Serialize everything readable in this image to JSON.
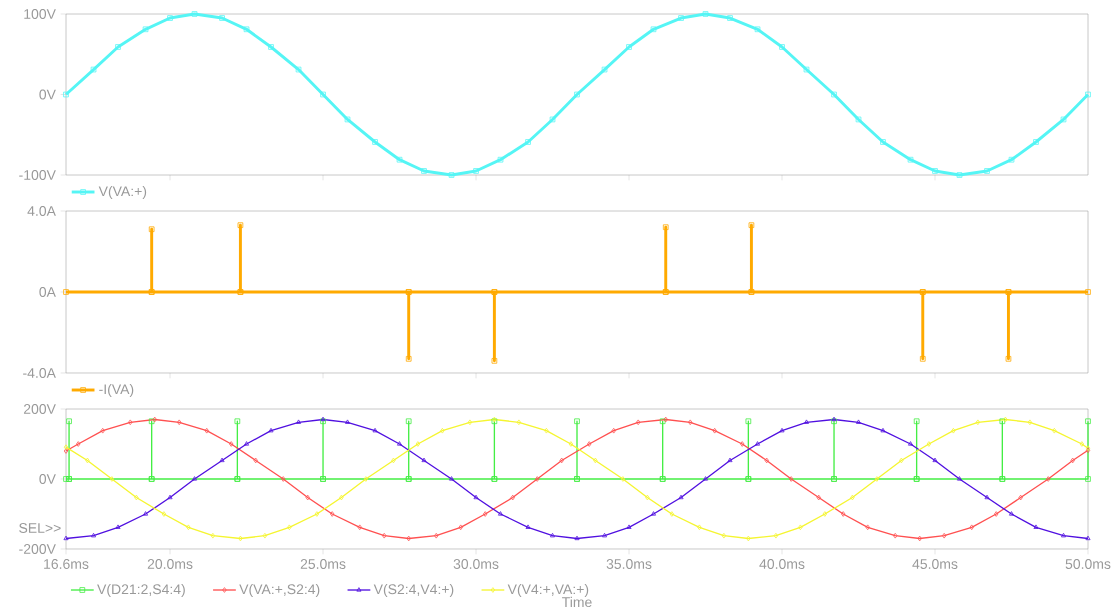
{
  "chart_data": [
    {
      "type": "line",
      "xlim": [
        16.6,
        50.0
      ],
      "xticks": [
        20,
        25,
        30,
        35,
        40,
        45
      ],
      "ylim": [
        -100,
        100
      ],
      "yticks": [
        {
          "value": -100,
          "label": "-100V"
        },
        {
          "value": 0,
          "label": "0V"
        },
        {
          "value": 100,
          "label": "100V"
        }
      ],
      "tick_labels": "y",
      "legend": "bottom left",
      "grid": false,
      "series": [
        {
          "name": "V(VA:+)",
          "color": "#55f5f5",
          "marker": "square",
          "x": [
            16.6,
            17.5,
            18.3,
            19.2,
            20.0,
            20.8,
            21.7,
            22.5,
            23.3,
            24.2,
            25.0,
            25.8,
            26.7,
            27.5,
            28.3,
            29.2,
            30.0,
            30.8,
            31.7,
            32.5,
            33.3,
            34.2,
            35.0,
            35.8,
            36.7,
            37.5,
            38.3,
            39.2,
            40.0,
            40.8,
            41.7,
            42.5,
            43.3,
            44.2,
            45.0,
            45.8,
            46.7,
            47.5,
            48.3,
            49.2,
            50.0
          ],
          "values": [
            0,
            31,
            59,
            81,
            95,
            100,
            95,
            81,
            59,
            31,
            0,
            -31,
            -59,
            -81,
            -95,
            -100,
            -95,
            -81,
            -59,
            -31,
            0,
            31,
            59,
            81,
            95,
            100,
            95,
            81,
            59,
            31,
            0,
            -31,
            -59,
            -81,
            -95,
            -100,
            -95,
            -81,
            -59,
            -31,
            0
          ]
        }
      ]
    },
    {
      "type": "line",
      "xlim": [
        16.6,
        50.0
      ],
      "xticks": [
        20,
        25,
        30,
        35,
        40,
        45
      ],
      "ylim": [
        -4,
        4
      ],
      "yticks": [
        {
          "value": -4,
          "label": "-4.0A"
        },
        {
          "value": 0,
          "label": "0A"
        },
        {
          "value": 4,
          "label": "4.0A"
        }
      ],
      "tick_labels": "y",
      "legend": "bottom left",
      "grid": false,
      "series": [
        {
          "name": "-I(VA)",
          "color": "#ffaa00",
          "marker": "square",
          "x": [
            16.6,
            19.4,
            19.4,
            19.4,
            22.3,
            22.3,
            22.3,
            27.8,
            27.8,
            27.8,
            30.6,
            30.6,
            30.6,
            36.2,
            36.2,
            36.2,
            39.0,
            39.0,
            39.0,
            44.6,
            44.6,
            44.6,
            47.4,
            47.4,
            47.4,
            50.0
          ],
          "values": [
            0,
            0,
            3.1,
            0,
            0,
            3.3,
            0,
            0,
            -3.3,
            0,
            0,
            -3.4,
            0,
            0,
            3.2,
            0,
            0,
            3.3,
            0,
            0,
            -3.3,
            0,
            0,
            -3.3,
            0,
            0
          ]
        }
      ]
    },
    {
      "type": "line",
      "xlim": [
        16.6,
        50.0
      ],
      "xticks": [
        {
          "value": 16.6,
          "label": "16.6ms"
        },
        {
          "value": 20,
          "label": "20.0ms"
        },
        {
          "value": 25,
          "label": "25.0ms"
        },
        {
          "value": 30,
          "label": "30.0ms"
        },
        {
          "value": 35,
          "label": "35.0ms"
        },
        {
          "value": 40,
          "label": "40.0ms"
        },
        {
          "value": 45,
          "label": "45.0ms"
        },
        {
          "value": 50,
          "label": "50.0ms"
        }
      ],
      "ylim": [
        -200,
        200
      ],
      "yticks": [
        {
          "value": -200,
          "label": "-200V"
        },
        {
          "value": 0,
          "label": "0V"
        },
        {
          "value": 200,
          "label": "200V"
        }
      ],
      "xlabel": "Time",
      "legend": "bottom left",
      "grid": false,
      "annotations": [
        "SEL>>"
      ],
      "series": [
        {
          "name": "V(D21:2,S4:4)",
          "color": "#44ee44",
          "marker": "square",
          "x": [
            16.6,
            16.7,
            16.7,
            16.7,
            19.4,
            19.4,
            19.4,
            22.2,
            22.2,
            22.2,
            25.0,
            25.0,
            25.0,
            27.8,
            27.8,
            27.8,
            30.6,
            30.6,
            30.6,
            33.3,
            33.3,
            33.3,
            36.1,
            36.1,
            36.1,
            38.9,
            38.9,
            38.9,
            41.7,
            41.7,
            41.7,
            44.4,
            44.4,
            44.4,
            47.2,
            47.2,
            47.2,
            50.0,
            50.0
          ],
          "values": [
            0,
            0,
            165,
            0,
            0,
            165,
            0,
            0,
            165,
            0,
            0,
            165,
            0,
            0,
            165,
            0,
            0,
            165,
            0,
            0,
            165,
            0,
            0,
            165,
            0,
            0,
            165,
            0,
            0,
            165,
            0,
            0,
            165,
            0,
            0,
            165,
            0,
            0,
            165
          ]
        },
        {
          "name": "V(VA:+,S2:4)",
          "color": "#ff5050",
          "marker": "diamond",
          "x": [
            16.6,
            17.0,
            17.8,
            18.7,
            19.5,
            20.3,
            21.2,
            22.0,
            22.8,
            23.7,
            24.5,
            25.3,
            26.2,
            27.0,
            27.8,
            28.7,
            29.5,
            30.3,
            31.2,
            32.0,
            32.8,
            33.7,
            34.5,
            35.3,
            36.2,
            37.0,
            37.8,
            38.7,
            39.5,
            40.3,
            41.2,
            42.0,
            42.8,
            43.7,
            44.5,
            45.3,
            46.2,
            47.0,
            47.8,
            48.7,
            49.5,
            50.0
          ],
          "values": [
            80,
            100,
            138,
            162,
            170,
            162,
            138,
            100,
            53,
            0,
            -53,
            -100,
            -138,
            -162,
            -170,
            -162,
            -138,
            -100,
            -53,
            0,
            53,
            100,
            138,
            162,
            170,
            162,
            138,
            100,
            53,
            0,
            -53,
            -100,
            -138,
            -162,
            -170,
            -162,
            -138,
            -100,
            -53,
            0,
            53,
            82
          ]
        },
        {
          "name": "V(S2:4,V4:+)",
          "color": "#5010e0",
          "marker": "triangle",
          "x": [
            16.6,
            17.5,
            18.3,
            19.2,
            20.0,
            20.8,
            21.7,
            22.5,
            23.3,
            24.2,
            25.0,
            25.8,
            26.7,
            27.5,
            28.3,
            29.2,
            30.0,
            30.8,
            31.7,
            32.5,
            33.3,
            34.2,
            35.0,
            35.8,
            36.7,
            37.5,
            38.3,
            39.2,
            40.0,
            40.8,
            41.7,
            42.5,
            43.3,
            44.2,
            45.0,
            45.8,
            46.7,
            47.5,
            48.3,
            49.2,
            50.0
          ],
          "values": [
            -170,
            -162,
            -138,
            -100,
            -53,
            0,
            53,
            100,
            138,
            162,
            170,
            162,
            138,
            100,
            53,
            0,
            -53,
            -100,
            -138,
            -162,
            -170,
            -162,
            -138,
            -100,
            -53,
            0,
            53,
            100,
            138,
            162,
            170,
            162,
            138,
            100,
            53,
            0,
            -53,
            -100,
            -138,
            -162,
            -170
          ]
        },
        {
          "name": "V(V4:+,VA:+)",
          "color": "#f5f530",
          "marker": "diamond",
          "x": [
            16.6,
            17.3,
            18.1,
            18.9,
            19.8,
            20.6,
            21.4,
            22.3,
            23.1,
            23.9,
            24.8,
            25.6,
            26.4,
            27.3,
            28.1,
            28.9,
            29.8,
            30.6,
            31.4,
            32.3,
            33.1,
            33.9,
            34.8,
            35.6,
            36.4,
            37.3,
            38.1,
            38.9,
            39.8,
            40.6,
            41.4,
            42.3,
            43.1,
            43.9,
            44.8,
            45.6,
            46.4,
            47.3,
            48.1,
            48.9,
            49.8,
            50.0
          ],
          "values": [
            91,
            53,
            0,
            -53,
            -100,
            -138,
            -162,
            -170,
            -162,
            -138,
            -100,
            -53,
            0,
            53,
            100,
            138,
            162,
            170,
            162,
            138,
            100,
            53,
            0,
            -53,
            -100,
            -138,
            -162,
            -170,
            -162,
            -138,
            -100,
            -53,
            0,
            53,
            100,
            138,
            162,
            170,
            162,
            138,
            100,
            88
          ]
        }
      ]
    }
  ]
}
